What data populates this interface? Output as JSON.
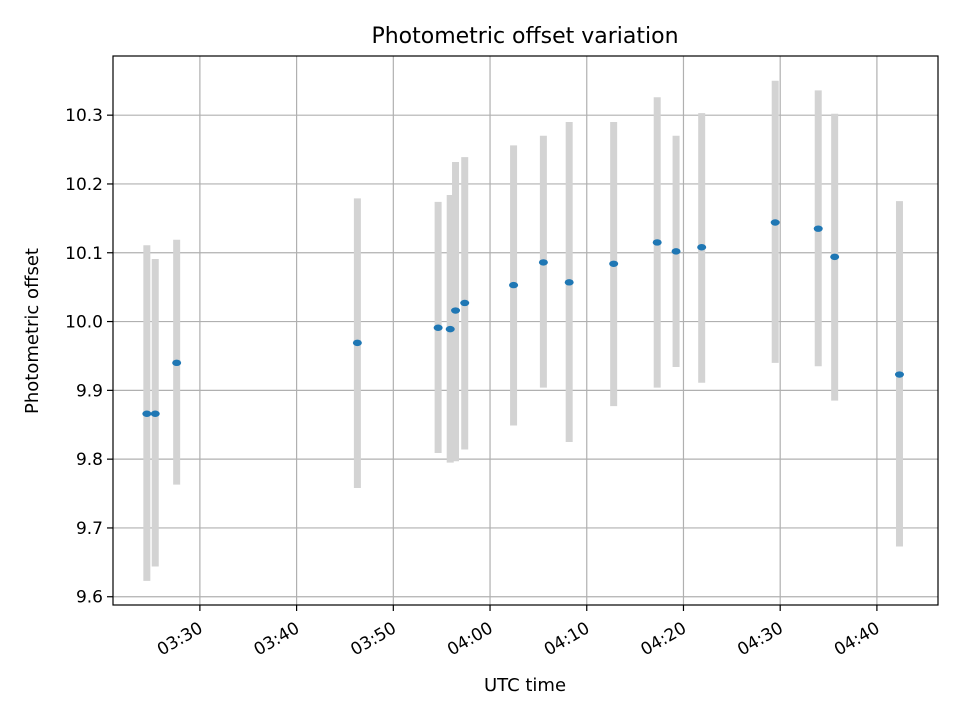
{
  "chart_data": {
    "type": "scatter",
    "title": "Photometric offset variation",
    "xlabel": "UTC time",
    "ylabel": "Photometric offset",
    "xlim": [
      "03:21:01",
      "04:46:19"
    ],
    "ylim": [
      9.588,
      10.386
    ],
    "x_ticks": [
      "03:30",
      "03:40",
      "03:50",
      "04:00",
      "04:10",
      "04:20",
      "04:30",
      "04:40"
    ],
    "y_ticks": [
      "9.6",
      "9.7",
      "9.8",
      "9.9",
      "10.0",
      "10.1",
      "10.2",
      "10.3"
    ],
    "grid": true,
    "marker_color": "#1f77b4",
    "errorbar_color": "#d3d3d3",
    "points": [
      {
        "x": "03:24:31",
        "y": 9.866,
        "ylow": 9.623,
        "yhigh": 10.111
      },
      {
        "x": "03:25:23",
        "y": 9.866,
        "ylow": 9.644,
        "yhigh": 10.091
      },
      {
        "x": "03:27:36",
        "y": 9.94,
        "ylow": 9.763,
        "yhigh": 10.119
      },
      {
        "x": "03:46:17",
        "y": 9.969,
        "ylow": 9.758,
        "yhigh": 10.179
      },
      {
        "x": "03:54:38",
        "y": 9.991,
        "ylow": 9.809,
        "yhigh": 10.174
      },
      {
        "x": "03:55:53",
        "y": 9.989,
        "ylow": 9.795,
        "yhigh": 10.184
      },
      {
        "x": "03:56:26",
        "y": 10.016,
        "ylow": 9.797,
        "yhigh": 10.232
      },
      {
        "x": "03:57:23",
        "y": 10.027,
        "ylow": 9.814,
        "yhigh": 10.239
      },
      {
        "x": "04:02:26",
        "y": 10.053,
        "ylow": 9.849,
        "yhigh": 10.256
      },
      {
        "x": "04:05:31",
        "y": 10.086,
        "ylow": 9.904,
        "yhigh": 10.27
      },
      {
        "x": "04:08:11",
        "y": 10.057,
        "ylow": 9.825,
        "yhigh": 10.29
      },
      {
        "x": "04:12:47",
        "y": 10.084,
        "ylow": 9.877,
        "yhigh": 10.29
      },
      {
        "x": "04:17:17",
        "y": 10.115,
        "ylow": 9.904,
        "yhigh": 10.326
      },
      {
        "x": "04:19:14",
        "y": 10.102,
        "ylow": 9.934,
        "yhigh": 10.27
      },
      {
        "x": "04:21:53",
        "y": 10.108,
        "ylow": 9.911,
        "yhigh": 10.303
      },
      {
        "x": "04:29:29",
        "y": 10.144,
        "ylow": 9.94,
        "yhigh": 10.35
      },
      {
        "x": "04:33:56",
        "y": 10.135,
        "ylow": 9.935,
        "yhigh": 10.336
      },
      {
        "x": "04:35:38",
        "y": 10.094,
        "ylow": 9.885,
        "yhigh": 10.302
      },
      {
        "x": "04:42:20",
        "y": 9.923,
        "ylow": 9.673,
        "yhigh": 10.175
      }
    ]
  }
}
